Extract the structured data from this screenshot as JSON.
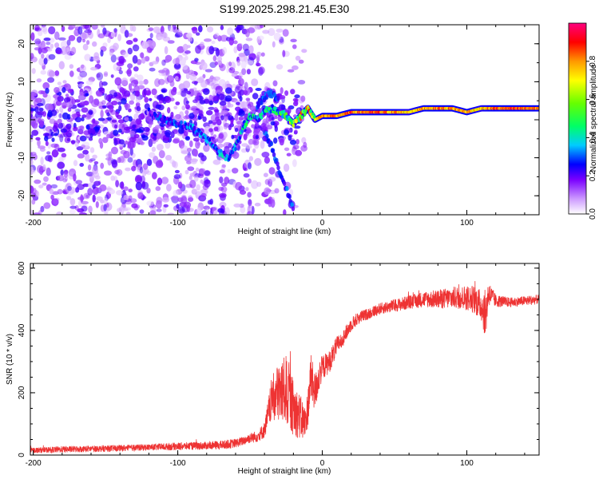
{
  "figure_title": "S199.2025.298.21.45.E30",
  "chart_data": [
    {
      "type": "heatmap",
      "title": "S199.2025.298.21.45.E30",
      "xlabel": "Height of straight line (km)",
      "ylabel": "Frequency (Hz)",
      "xlim": [
        -202,
        150
      ],
      "ylim": [
        -25,
        25
      ],
      "xticks": [
        -200,
        -100,
        0,
        100
      ],
      "yticks": [
        -20,
        -10,
        0,
        10,
        20
      ],
      "colorbar": {
        "label": "Normalized spectral amplitude",
        "range": [
          0,
          1
        ],
        "ticks": [
          "0.0",
          "0.2",
          "0.4",
          "0.6",
          "0.8"
        ],
        "tick_values": [
          0.0,
          0.2,
          0.4,
          0.6,
          0.8
        ],
        "colors": [
          "#ffffff",
          "#cc99ff",
          "#7a00ff",
          "#0000ff",
          "#00ccff",
          "#00ff66",
          "#66ff00",
          "#ffff00",
          "#ff9900",
          "#ff0000",
          "#ff0080"
        ]
      },
      "ridge": {
        "x": [
          -120,
          -110,
          -100,
          -90,
          -80,
          -70,
          -65,
          -60,
          -55,
          -50,
          -45,
          -40,
          -35,
          -30,
          -25,
          -20,
          -15,
          -10,
          -5,
          0,
          10,
          20,
          30,
          40,
          50,
          60,
          70,
          80,
          90,
          100,
          110,
          120,
          130,
          140,
          150
        ],
        "freq": [
          2,
          0,
          -1,
          -2,
          -5,
          -9,
          -10,
          -7,
          -2,
          1,
          0,
          2,
          3,
          2,
          1,
          -1,
          1,
          3,
          0,
          1,
          1,
          2,
          2,
          2,
          2,
          2,
          3,
          3,
          3,
          2,
          3,
          3,
          3,
          3,
          3
        ],
        "amplitude": [
          0.3,
          0.35,
          0.35,
          0.4,
          0.4,
          0.45,
          0.4,
          0.45,
          0.5,
          0.5,
          0.45,
          0.5,
          0.5,
          0.55,
          0.6,
          0.75,
          0.8,
          0.85,
          0.8,
          0.85,
          0.85,
          0.9,
          0.9,
          0.9,
          0.85,
          0.8,
          0.85,
          0.9,
          0.85,
          0.85,
          0.8,
          0.9,
          0.9,
          0.9,
          0.9
        ]
      },
      "branches": [
        {
          "x": [
            -40,
            -35,
            -30,
            -25,
            -20
          ],
          "freq": [
            -3,
            -7,
            -13,
            -18,
            -24
          ],
          "amplitude": 0.35
        },
        {
          "x": [
            -45,
            -40,
            -35,
            -30
          ],
          "freq": [
            4,
            6,
            7,
            5
          ],
          "amplitude": 0.35
        }
      ]
    },
    {
      "type": "line",
      "xlabel": "Height of straight line (km)",
      "ylabel": "SNR (10 * v/v)",
      "xlim": [
        -202,
        150
      ],
      "ylim": [
        0,
        615
      ],
      "xticks": [
        -200,
        -100,
        0,
        100
      ],
      "yticks": [
        0,
        200,
        400,
        600
      ],
      "series": [
        {
          "name": "SNR",
          "color": "#ee3333",
          "x": [
            -202,
            -180,
            -160,
            -140,
            -120,
            -100,
            -80,
            -70,
            -60,
            -55,
            -50,
            -45,
            -40,
            -35,
            -30,
            -25,
            -20,
            -15,
            -12,
            -10,
            -8,
            -5,
            -2,
            0,
            5,
            10,
            15,
            20,
            25,
            30,
            35,
            40,
            50,
            60,
            70,
            80,
            90,
            100,
            105,
            110,
            113,
            115,
            120,
            130,
            140,
            150
          ],
          "y": [
            15,
            18,
            20,
            22,
            25,
            28,
            30,
            32,
            38,
            45,
            55,
            60,
            80,
            180,
            200,
            210,
            150,
            120,
            100,
            150,
            250,
            200,
            260,
            280,
            300,
            350,
            380,
            420,
            440,
            450,
            460,
            470,
            480,
            490,
            500,
            500,
            505,
            505,
            500,
            480,
            450,
            520,
            495,
            490,
            495,
            500
          ],
          "noise": [
            8,
            10,
            10,
            10,
            10,
            12,
            12,
            14,
            14,
            14,
            16,
            18,
            25,
            70,
            100,
            110,
            90,
            70,
            60,
            60,
            80,
            60,
            50,
            40,
            35,
            30,
            25,
            22,
            20,
            18,
            18,
            18,
            20,
            22,
            25,
            30,
            35,
            40,
            45,
            50,
            80,
            40,
            20,
            15,
            15,
            15
          ]
        }
      ]
    }
  ]
}
